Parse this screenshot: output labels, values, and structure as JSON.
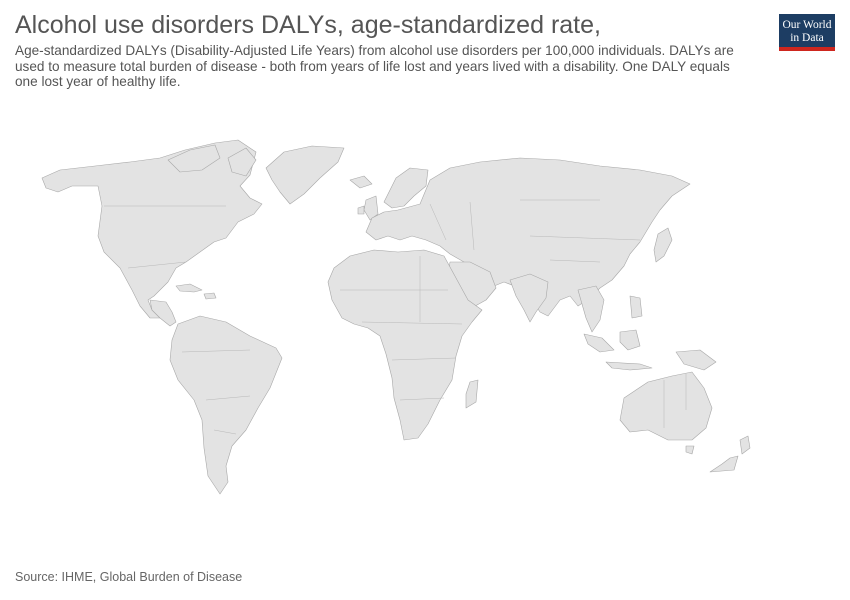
{
  "header": {
    "title": "Alcohol use disorders DALYs, age-standardized rate,",
    "subtitle": "Age-standardized DALYs (Disability-Adjusted Life Years) from alcohol use disorders per 100,000 individuals. DALYs are used to measure total burden of disease - both from years of life lost and years lived with a disability. One DALY equals one lost year of healthy life."
  },
  "logo": {
    "line1": "Our World",
    "line2": "in Data",
    "bg_color": "#1d3d63",
    "stripe_color": "#ce261e"
  },
  "map": {
    "fill_color": "#e3e3e3",
    "border_color": "#a8a8a8",
    "data_state": "no data"
  },
  "footer": {
    "source": "Source: IHME, Global Burden of Disease"
  }
}
